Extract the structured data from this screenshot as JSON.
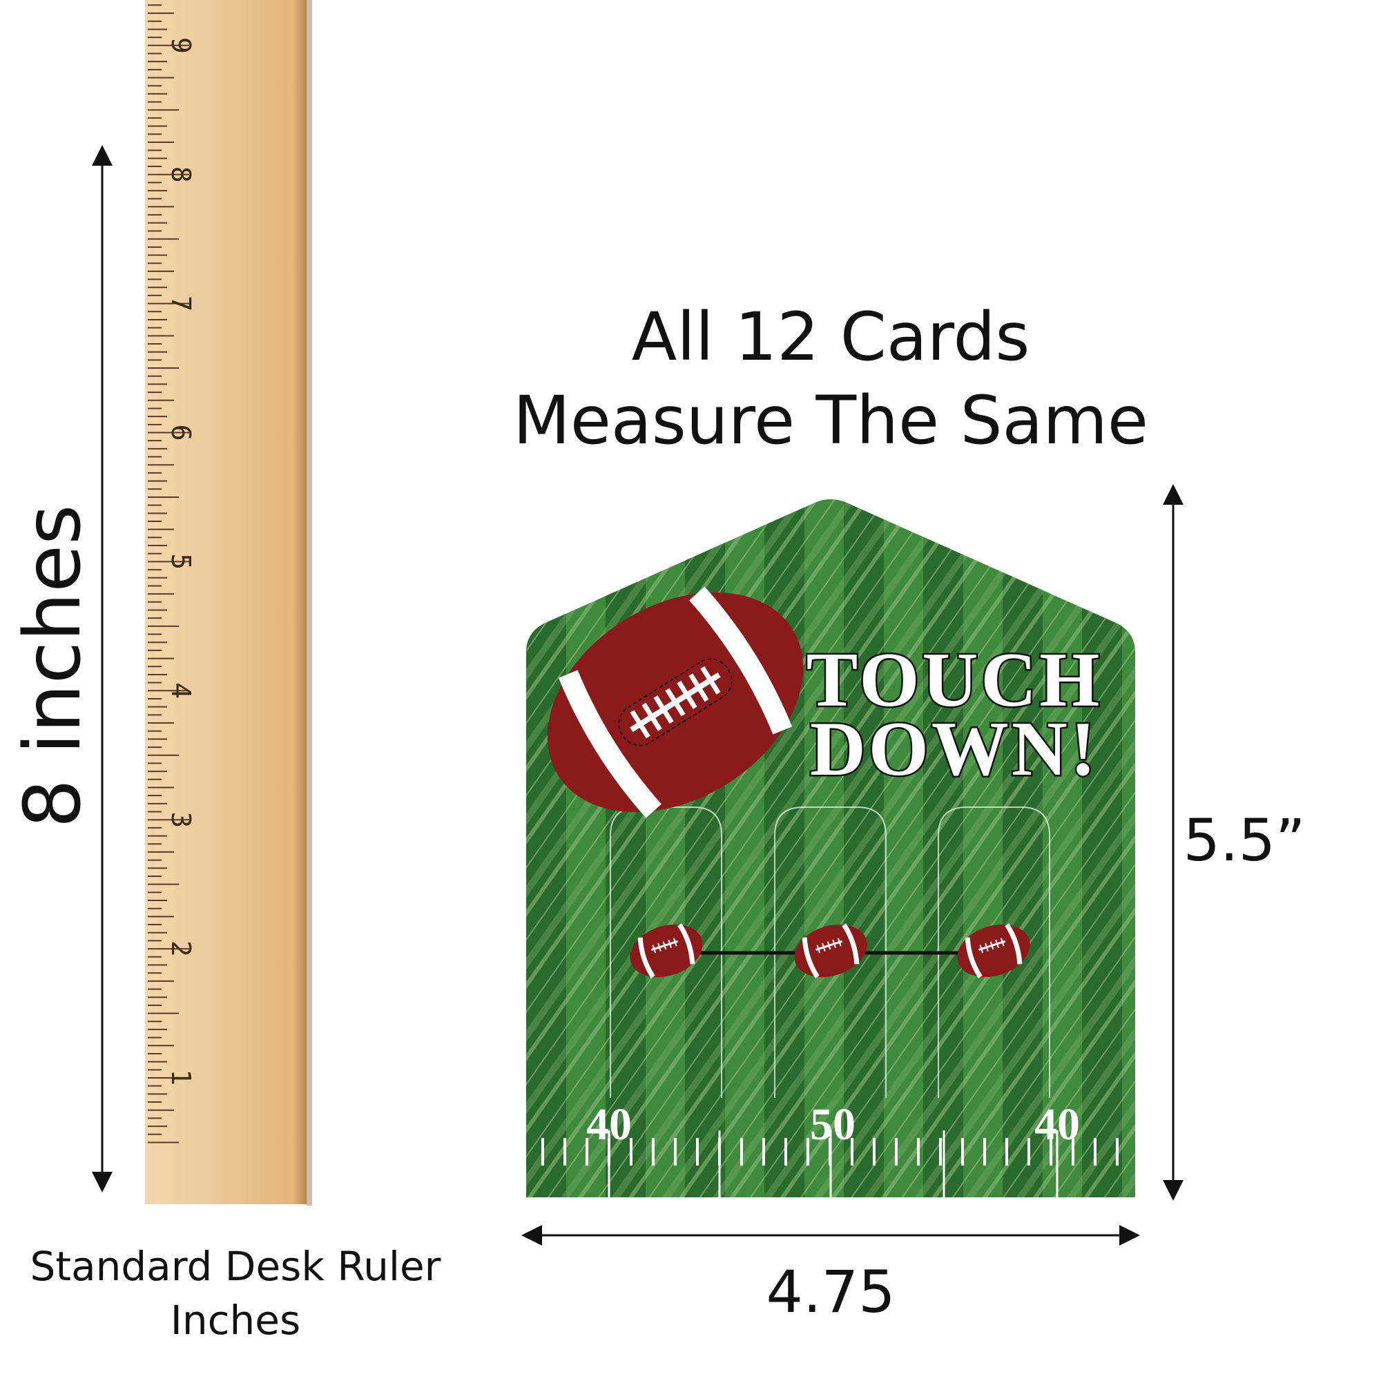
{
  "heading": {
    "line1": "All 12 Cards",
    "line2": "Measure The Same"
  },
  "ruler": {
    "height_label": "8 inches",
    "caption_line1": "Standard Desk Ruler",
    "caption_line2": "Inches",
    "numbers": [
      "1",
      "2",
      "3",
      "4",
      "5",
      "6",
      "7",
      "8",
      "9"
    ]
  },
  "card": {
    "title_line1": "TOUCH",
    "title_line2": "DOWN!",
    "yard_numbers": [
      "40",
      "50",
      "40"
    ],
    "height_label": "5.5”",
    "width_label": "4.75"
  },
  "colors": {
    "field_dark": "#2b6a2d",
    "field_light": "#3f8a3d",
    "football": "#8b1a1a",
    "ruler": "#e9c48f"
  }
}
